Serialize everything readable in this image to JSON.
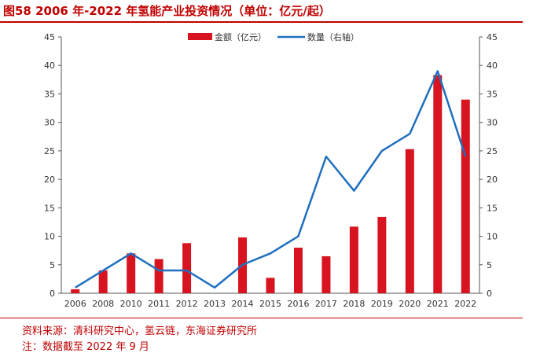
{
  "title": "图58  2006 年-2022 年氢能产业投资情况（单位：亿元/起）",
  "source": "资料来源：清科研究中心，氢云链，东海证券研究所",
  "note": "注：数据截至 2022 年 9 月",
  "colors": {
    "bar": "#d7141f",
    "line": "#1f6fbf",
    "accent": "#c00000"
  },
  "chart_data": {
    "type": "bar+line",
    "categories": [
      "2006",
      "2008",
      "2010",
      "2011",
      "2012",
      "2013",
      "2014",
      "2015",
      "2016",
      "2017",
      "2018",
      "2019",
      "2020",
      "2021",
      "2022"
    ],
    "series": [
      {
        "name": "金额（亿元）",
        "type": "bar",
        "axis": "left",
        "values": [
          0.7,
          4.0,
          7.0,
          6.0,
          8.8,
          0.0,
          9.8,
          2.7,
          8.0,
          6.5,
          11.7,
          13.4,
          25.3,
          38.3,
          34.0
        ]
      },
      {
        "name": "数量（右轴）",
        "type": "line",
        "axis": "right",
        "values": [
          1,
          4,
          7,
          4,
          4,
          1,
          5,
          7,
          10,
          24,
          18,
          25,
          28,
          39,
          24
        ]
      }
    ],
    "ylim_left": [
      0,
      45
    ],
    "ylim_right": [
      0,
      45
    ],
    "yticks": [
      0,
      5,
      10,
      15,
      20,
      25,
      30,
      35,
      40,
      45
    ],
    "legend_position": "top-center"
  }
}
